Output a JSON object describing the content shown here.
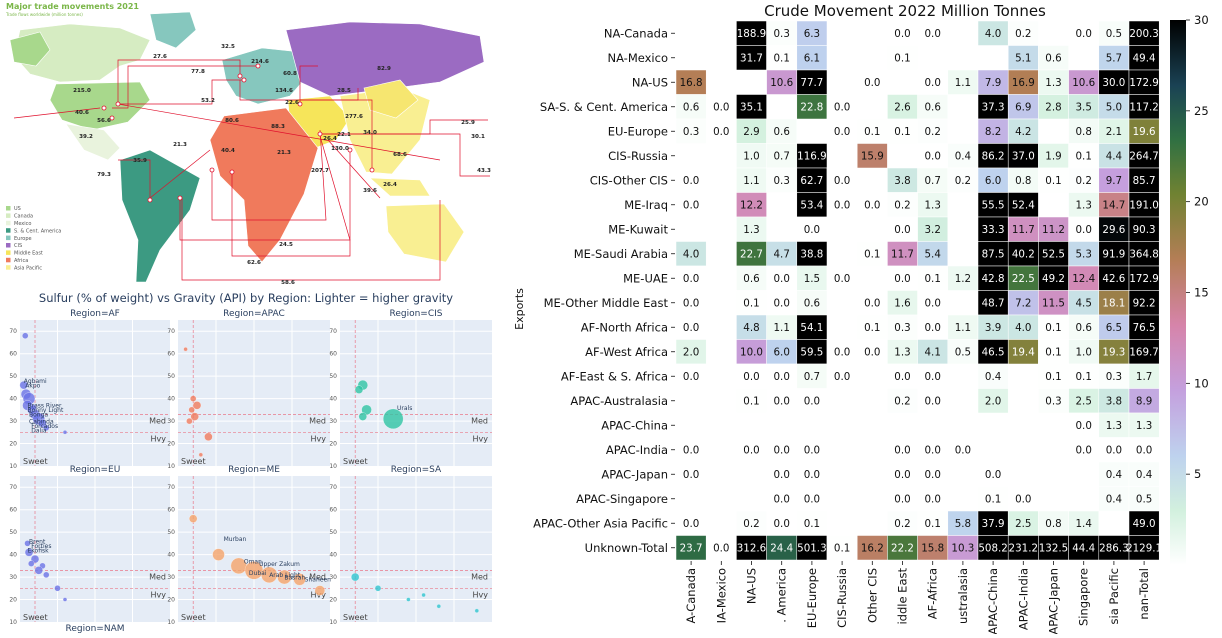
{
  "colors": {
    "US": "#a8d88c",
    "Canada": "#d6ecc2",
    "Mexico": "#e9f3dd",
    "SCAmerica": "#3c9a82",
    "Europe": "#86c7be",
    "CIS": "#9b6bc2",
    "MiddleEast": "#f6e55a",
    "Africa": "#f07a5c",
    "AsiaPacific": "#f9ef92",
    "route": "#e0102c"
  },
  "map": {
    "title": "Major trade movements 2021",
    "subtitle": "Trade flows worldwide (million tonnes)",
    "legend": [
      "US",
      "Canada",
      "Mexico",
      "S. & Cent. America",
      "Europe",
      "CIS",
      "Middle East",
      "Africa",
      "Asia Pacific"
    ],
    "flow_labels": [
      "32.5",
      "27.6",
      "77.8",
      "214.6",
      "60.8",
      "82.9",
      "215.0",
      "40.6",
      "56.6",
      "39.2",
      "53.2",
      "134.6",
      "22.6",
      "28.5",
      "277.6",
      "80.6",
      "88.3",
      "26.4",
      "25.9",
      "30.1",
      "21.3",
      "40.4",
      "21.3",
      "130.0",
      "22.1",
      "34.0",
      "207.7",
      "68.6",
      "79.3",
      "35.9",
      "26.4",
      "39.6",
      "43.3",
      "24.5",
      "62.6",
      "58.6"
    ]
  },
  "scatter": {
    "title": "Sulfur (% of weight) vs Gravity (API) by Region: Lighter = higher gravity",
    "regions": [
      "Region=AF",
      "Region=APAC",
      "Region=CIS",
      "Region=EU",
      "Region=ME",
      "Region=SA",
      "Region=NAM"
    ],
    "yticks": [
      "70",
      "60",
      "50",
      "40",
      "30",
      "20",
      "10"
    ],
    "ref_labels": {
      "med": "Med",
      "hvy": "Hvy",
      "sweet": "Sweet"
    },
    "points": {
      "AF": [
        [
          0.07,
          68,
          3,
          "#6a73e6"
        ],
        [
          0.05,
          46,
          4,
          "#6a73e6"
        ],
        [
          0.08,
          42,
          5,
          "#6a73e6"
        ],
        [
          0.12,
          40,
          6,
          "#6a73e6"
        ],
        [
          0.1,
          37,
          5,
          "#6a73e6"
        ],
        [
          0.15,
          35,
          4,
          "#6a73e6"
        ],
        [
          0.2,
          33,
          5,
          "#6a73e6"
        ],
        [
          0.25,
          31,
          6,
          "#6a73e6"
        ],
        [
          0.3,
          29,
          4,
          "#6a73e6"
        ],
        [
          0.35,
          27,
          3,
          "#6a73e6"
        ],
        [
          0.18,
          36,
          3,
          "#6a73e6"
        ],
        [
          0.6,
          25,
          2,
          "#6a73e6"
        ]
      ],
      "APAC": [
        [
          0.1,
          62,
          2,
          "#f07a5c"
        ],
        [
          0.2,
          40,
          3,
          "#f07a5c"
        ],
        [
          0.25,
          37,
          4,
          "#f07a5c"
        ],
        [
          0.18,
          35,
          3,
          "#f07a5c"
        ],
        [
          0.22,
          32,
          4,
          "#f07a5c"
        ],
        [
          0.15,
          30,
          3,
          "#f07a5c"
        ],
        [
          0.4,
          23,
          4,
          "#f07a5c"
        ],
        [
          0.3,
          15,
          2,
          "#f07a5c"
        ]
      ],
      "CIS": [
        [
          0.3,
          46,
          5,
          "#2fc4a4"
        ],
        [
          0.25,
          44,
          4,
          "#2fc4a4"
        ],
        [
          0.35,
          35,
          5,
          "#2fc4a4"
        ],
        [
          0.3,
          32,
          4,
          "#2fc4a4"
        ],
        [
          0.7,
          31,
          10,
          "#2fc4a4"
        ]
      ],
      "EU": [
        [
          0.1,
          45,
          3,
          "#6a73e6"
        ],
        [
          0.12,
          41,
          4,
          "#6a73e6"
        ],
        [
          0.2,
          38,
          4,
          "#6a73e6"
        ],
        [
          0.15,
          36,
          3,
          "#6a73e6"
        ],
        [
          0.3,
          35,
          3,
          "#6a73e6"
        ],
        [
          0.25,
          33,
          4,
          "#6a73e6"
        ],
        [
          0.35,
          31,
          3,
          "#6a73e6"
        ],
        [
          0.5,
          25,
          3,
          "#6a73e6"
        ],
        [
          0.6,
          20,
          2,
          "#6a73e6"
        ]
      ],
      "ME": [
        [
          0.3,
          56,
          4,
          "#f5a46a"
        ],
        [
          0.8,
          40,
          6,
          "#f5a46a"
        ],
        [
          1.2,
          35,
          8,
          "#f5a46a"
        ],
        [
          1.5,
          33,
          9,
          "#f5a46a"
        ],
        [
          1.8,
          31,
          8,
          "#f5a46a"
        ],
        [
          2.1,
          30,
          7,
          "#f5a46a"
        ],
        [
          2.4,
          29,
          6,
          "#f5a46a"
        ],
        [
          2.8,
          24,
          5,
          "#f5a46a"
        ]
      ],
      "SA": [
        [
          0.2,
          30,
          4,
          "#2fc4d0"
        ],
        [
          0.5,
          25,
          3,
          "#2fc4d0"
        ],
        [
          0.9,
          20,
          2,
          "#2fc4d0"
        ],
        [
          1.3,
          17,
          2,
          "#2fc4d0"
        ],
        [
          1.8,
          15,
          2,
          "#2fc4d0"
        ],
        [
          1.1,
          22,
          2,
          "#2fc4d0"
        ]
      ],
      "NAM": [
        [
          0.1,
          40,
          4,
          "#b06fd6"
        ],
        [
          0.15,
          38,
          5,
          "#b06fd6"
        ],
        [
          0.2,
          35,
          4,
          "#b06fd6"
        ],
        [
          0.35,
          30,
          3,
          "#b06fd6"
        ],
        [
          0.25,
          32,
          4,
          "#b06fd6"
        ]
      ]
    },
    "point_labels": {
      "AF": [
        [
          0.05,
          47,
          "Agbami"
        ],
        [
          0.07,
          45,
          "Akpo"
        ],
        [
          0.1,
          36,
          "Brass River"
        ],
        [
          0.1,
          34,
          "Bonny Light"
        ],
        [
          0.12,
          32,
          "Bonga"
        ],
        [
          0.12,
          29,
          "Cabinda"
        ],
        [
          0.15,
          27,
          "Forcados"
        ],
        [
          0.15,
          25,
          "Dalia"
        ]
      ],
      "CIS": [
        [
          0.75,
          35,
          "Urals"
        ]
      ],
      "EU": [
        [
          0.12,
          45,
          "Brent"
        ],
        [
          0.15,
          43,
          "Forties"
        ],
        [
          0.1,
          41,
          "Ekofisk"
        ]
      ],
      "ME": [
        [
          0.9,
          46,
          "Murban"
        ],
        [
          1.3,
          36,
          "Oman"
        ],
        [
          1.6,
          35,
          "Upper Zakum"
        ],
        [
          1.4,
          31,
          "Dubai"
        ],
        [
          1.8,
          30,
          "Arab Light"
        ],
        [
          2.1,
          29,
          "Basrah"
        ],
        [
          2.5,
          28,
          "Shaheen"
        ]
      ]
    }
  },
  "chart_data": {
    "type": "heatmap",
    "title": "Crude Movement 2022 Million Tonnes",
    "ylabel": "Exports",
    "xlabel": "",
    "colorbar": {
      "min": 0,
      "max": 30,
      "ticks": [
        5,
        10,
        15,
        20,
        25,
        30
      ],
      "colormap": "cubehelix_r"
    },
    "rows": [
      "NA-Canada",
      "NA-Mexico",
      "NA-US",
      "SA-S. & Cent. America",
      "EU-Europe",
      "CIS-Russia",
      "CIS-Other CIS",
      "ME-Iraq",
      "ME-Kuwait",
      "ME-Saudi Arabia",
      "ME-UAE",
      "ME-Other Middle East",
      "AF-North Africa",
      "AF-West Africa",
      "AF-East & S. Africa",
      "APAC-Australasia",
      "APAC-China",
      "APAC-India",
      "APAC-Japan",
      "APAC-Singapore",
      "APAC-Other Asia Pacific",
      "Unknown-Total"
    ],
    "columns": [
      "NA-Canada",
      "NA-Mexico",
      "NA-US",
      "SA-S. & Cent. America",
      "EU-Europe",
      "CIS-Russia",
      "CIS-Other CIS",
      "ME-Other Middle East",
      "AF-Africa",
      "APAC-Australasia",
      "APAC-China",
      "APAC-India",
      "APAC-Japan",
      "APAC-Singapore",
      "APAC-Other Asia Pacific",
      "Unknown-Total"
    ],
    "column_labels_visible": [
      "A-Canada",
      "IA-Mexico",
      "NA-US",
      ". America",
      "EU-Europe",
      "CIS-Russia",
      "Other CIS",
      "iddle East",
      "AF-Africa",
      "ustralasia",
      "APAC-China",
      "APAC-India",
      "APAC-Japan",
      "Singapore",
      "sia Pacific",
      "nan-Total"
    ],
    "values": [
      [
        null,
        null,
        188.9,
        0.3,
        6.3,
        null,
        null,
        0.0,
        0.0,
        null,
        4.0,
        0.2,
        null,
        0.0,
        0.5,
        200.3
      ],
      [
        null,
        null,
        31.7,
        0.1,
        6.1,
        null,
        null,
        0.1,
        null,
        null,
        null,
        5.1,
        0.6,
        null,
        5.7,
        49.4
      ],
      [
        16.8,
        null,
        null,
        10.6,
        77.7,
        null,
        0.0,
        null,
        0.0,
        1.1,
        7.9,
        16.9,
        1.3,
        10.6,
        30.0,
        172.9
      ],
      [
        0.6,
        0.0,
        35.1,
        null,
        22.8,
        0.0,
        null,
        2.6,
        0.6,
        null,
        37.3,
        6.9,
        2.8,
        3.5,
        5.0,
        117.2
      ],
      [
        0.3,
        0.0,
        2.9,
        0.6,
        null,
        0.0,
        0.1,
        0.1,
        0.2,
        null,
        8.2,
        4.2,
        null,
        0.8,
        2.1,
        19.6
      ],
      [
        null,
        null,
        1.0,
        0.7,
        116.9,
        null,
        15.9,
        null,
        0.0,
        0.4,
        86.2,
        37.0,
        1.9,
        0.1,
        4.4,
        264.7
      ],
      [
        0.0,
        null,
        1.1,
        0.3,
        62.7,
        0.0,
        null,
        3.8,
        0.7,
        0.2,
        6.0,
        0.8,
        0.1,
        0.2,
        9.7,
        85.7
      ],
      [
        0.0,
        null,
        12.2,
        null,
        53.4,
        0.0,
        0.0,
        0.2,
        1.3,
        null,
        55.5,
        52.4,
        null,
        1.3,
        14.7,
        191.0
      ],
      [
        null,
        null,
        1.3,
        null,
        0.0,
        null,
        null,
        0.0,
        3.2,
        null,
        33.3,
        11.7,
        11.2,
        0.0,
        29.6,
        90.3
      ],
      [
        4.0,
        null,
        22.7,
        4.7,
        38.8,
        null,
        0.1,
        11.7,
        5.4,
        null,
        87.5,
        40.2,
        52.5,
        5.3,
        91.9,
        364.8
      ],
      [
        0.0,
        null,
        0.6,
        0.0,
        1.5,
        0.0,
        null,
        0.0,
        0.1,
        1.2,
        42.8,
        22.5,
        49.2,
        12.4,
        42.6,
        172.9
      ],
      [
        0.0,
        null,
        0.1,
        0.0,
        0.6,
        null,
        0.0,
        1.6,
        0.0,
        null,
        48.7,
        7.2,
        11.5,
        4.5,
        18.1,
        92.2
      ],
      [
        0.0,
        null,
        4.8,
        1.1,
        54.1,
        null,
        0.1,
        0.3,
        0.0,
        1.1,
        3.9,
        4.0,
        0.1,
        0.6,
        6.5,
        76.5
      ],
      [
        2.0,
        null,
        10.0,
        6.0,
        59.5,
        0.0,
        0.0,
        1.3,
        4.1,
        0.5,
        46.5,
        19.4,
        0.1,
        1.0,
        19.3,
        169.7
      ],
      [
        0.0,
        null,
        0.0,
        0.0,
        0.7,
        0.0,
        null,
        0.0,
        0.0,
        null,
        0.4,
        null,
        0.1,
        0.1,
        0.3,
        1.7
      ],
      [
        null,
        null,
        0.1,
        0.0,
        0.0,
        null,
        null,
        0.2,
        0.0,
        null,
        2.0,
        null,
        0.3,
        2.5,
        3.8,
        8.9
      ],
      [
        null,
        null,
        null,
        null,
        null,
        null,
        null,
        null,
        null,
        null,
        null,
        null,
        null,
        0.0,
        1.3,
        1.3
      ],
      [
        0.0,
        null,
        0.0,
        0.0,
        0.0,
        null,
        null,
        0.0,
        0.0,
        0.0,
        null,
        null,
        null,
        0.0,
        0.0,
        0.0
      ],
      [
        0.0,
        null,
        null,
        0.0,
        0.0,
        null,
        null,
        0.0,
        0.0,
        null,
        0.0,
        null,
        null,
        null,
        0.4,
        0.4
      ],
      [
        null,
        null,
        null,
        0.0,
        0.0,
        null,
        null,
        0.0,
        0.0,
        null,
        0.1,
        0.0,
        null,
        null,
        0.4,
        0.5
      ],
      [
        0.0,
        null,
        0.2,
        0.0,
        0.1,
        null,
        null,
        0.2,
        0.1,
        5.8,
        37.9,
        2.5,
        0.8,
        1.4,
        null,
        49.0
      ],
      [
        23.7,
        0.0,
        312.6,
        24.4,
        501.3,
        0.1,
        16.2,
        22.2,
        15.8,
        10.3,
        508.2,
        231.2,
        132.5,
        44.4,
        286.3,
        2129.1
      ]
    ]
  }
}
